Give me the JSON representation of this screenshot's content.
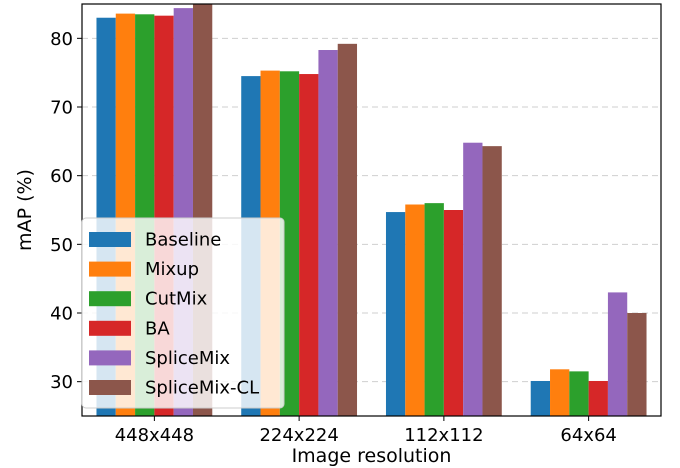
{
  "chart_data": {
    "type": "bar",
    "title": "",
    "xlabel": "Image resolution",
    "ylabel": "mAP (%)",
    "ylim": [
      25,
      85
    ],
    "yticks": [
      30,
      40,
      50,
      60,
      70,
      80
    ],
    "grid": "horizontal dashed",
    "legend_position": "lower-left",
    "categories": [
      "448x448",
      "224x224",
      "112x112",
      "64x64"
    ],
    "series": [
      {
        "name": "Baseline",
        "color": "#1f77b4",
        "values": [
          83.0,
          74.5,
          54.7,
          30.1
        ]
      },
      {
        "name": "Mixup",
        "color": "#ff7f0e",
        "values": [
          83.6,
          75.3,
          55.8,
          31.8
        ]
      },
      {
        "name": "CutMix",
        "color": "#2ca02c",
        "values": [
          83.5,
          75.2,
          56.0,
          31.5
        ]
      },
      {
        "name": "BA",
        "color": "#d62728",
        "values": [
          83.3,
          74.8,
          55.0,
          30.1
        ]
      },
      {
        "name": "SpliceMix",
        "color": "#9467bd",
        "values": [
          84.4,
          78.3,
          64.8,
          43.0
        ]
      },
      {
        "name": "SpliceMix-CL",
        "color": "#8c564b",
        "values": [
          85.0,
          79.2,
          64.3,
          40.0
        ]
      }
    ]
  }
}
